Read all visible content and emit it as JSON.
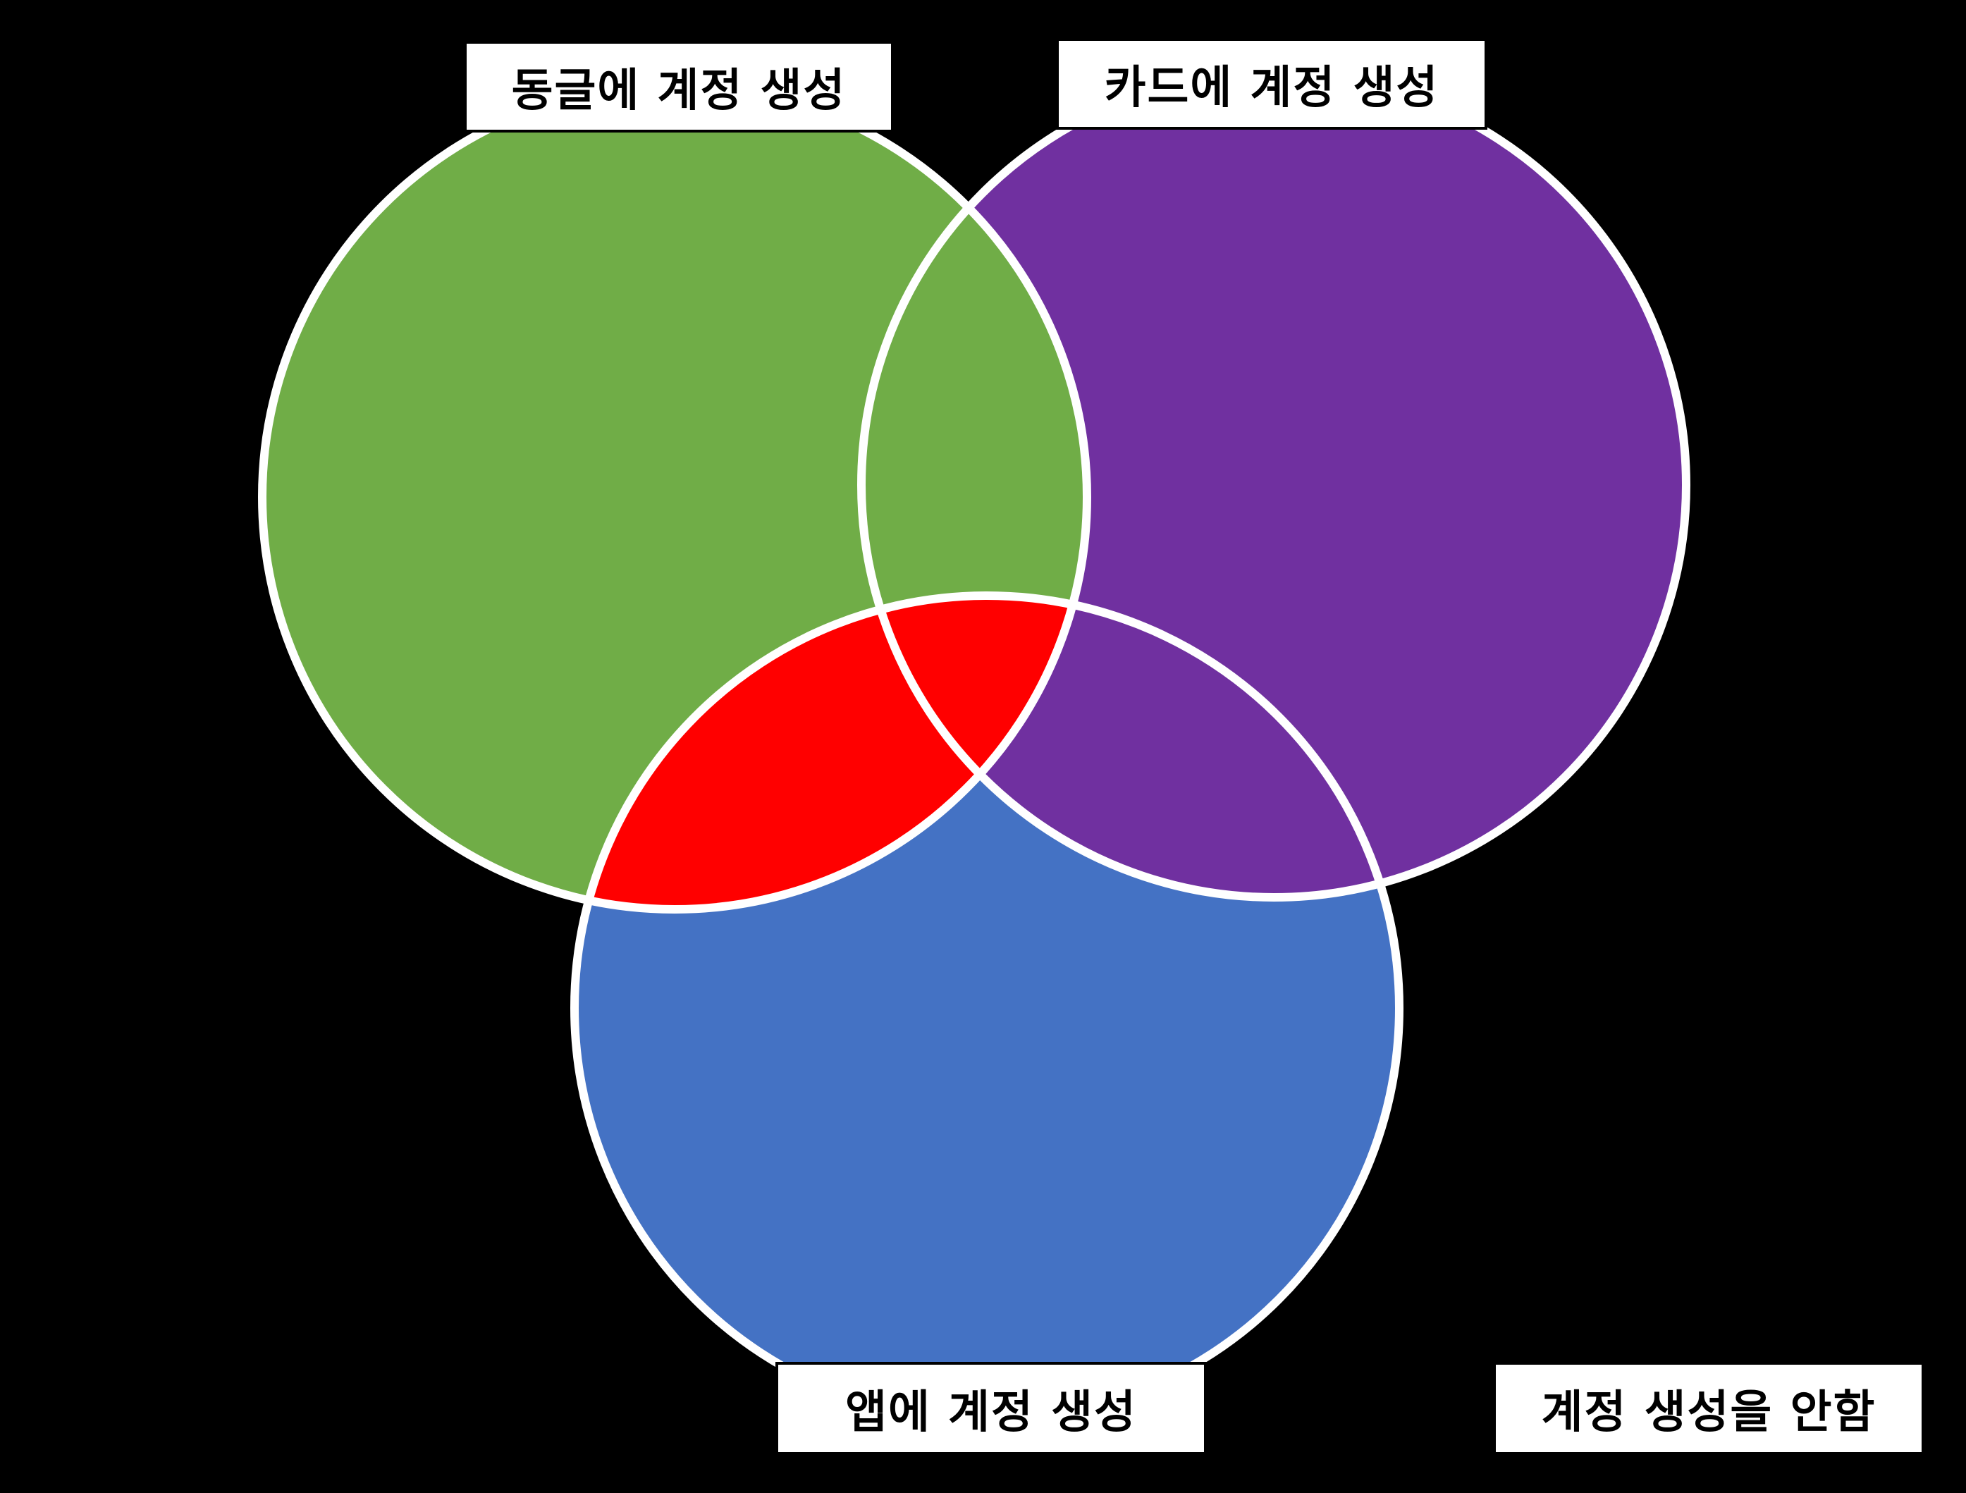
{
  "labels": {
    "dongle": "동글에 계정 생성",
    "card": "카드에 계정 생성",
    "app": "앱에 계정 생성",
    "none": "계정 생성을 안함"
  },
  "colors": {
    "background": "#000000",
    "dongle_set": "#70AD47",
    "card_set": "#7030A0",
    "app_set": "#4472C4",
    "all_three_overlap": "#FF0000",
    "outline": "#FFFFFF"
  }
}
